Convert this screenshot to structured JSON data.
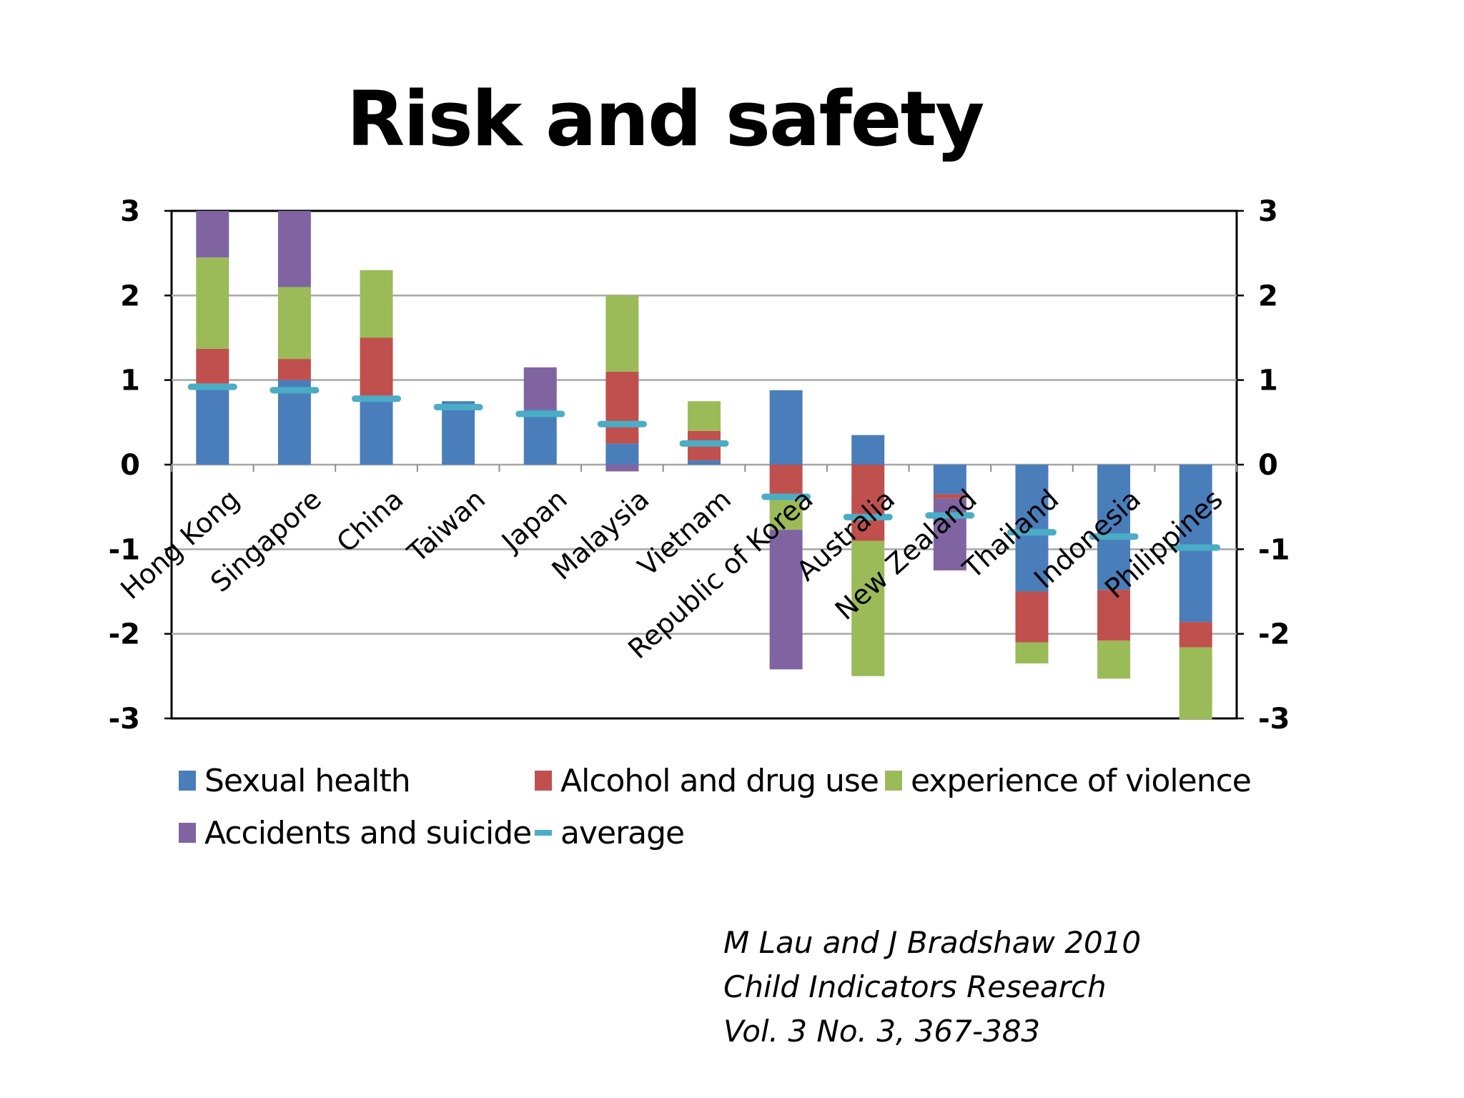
{
  "slide": {
    "title": "Risk and safety",
    "citation": [
      "M Lau and J Bradshaw 2010",
      "Child Indicators Research",
      "Vol. 3 No. 3, 367-383"
    ]
  },
  "chart_data": {
    "type": "bar",
    "stacked": true,
    "title": "",
    "xlabel": "",
    "ylabel": "",
    "ylim": [
      -3,
      3
    ],
    "yticks": [
      3,
      2,
      1,
      0,
      -1,
      -2,
      -3
    ],
    "secondary_y_axis": true,
    "grid": true,
    "legend_position": "bottom",
    "categories": [
      "Hong Kong",
      "Singapore",
      "China",
      "Taiwan",
      "Japan",
      "Malaysia",
      "Vietnam",
      "Republic of Korea",
      "Australia",
      "New Zealand",
      "Thailand",
      "Indonesia",
      "Philippines"
    ],
    "series": [
      {
        "name": "Sexual health",
        "color": "#4a7ebb",
        "values": [
          0.96,
          1.0,
          0.8,
          0.75,
          0.65,
          0.25,
          0.05,
          0.88,
          0.35,
          -0.35,
          -1.5,
          -1.48,
          -1.86
        ]
      },
      {
        "name": "Alcohol and drug use",
        "color": "#c0504d",
        "values": [
          0.41,
          0.25,
          0.7,
          0.0,
          0.0,
          0.85,
          0.35,
          -0.35,
          -0.9,
          -0.05,
          -0.6,
          -0.6,
          -0.3
        ]
      },
      {
        "name": "experience of violence",
        "color": "#9bbb59",
        "values": [
          1.08,
          0.85,
          0.8,
          0.0,
          0.0,
          0.9,
          0.35,
          -0.42,
          -1.6,
          0.0,
          -0.25,
          -0.45,
          -0.85
        ]
      },
      {
        "name": "Accidents and suicide",
        "color": "#8064a2",
        "values": [
          0.55,
          0.9,
          0.0,
          0.0,
          0.5,
          -0.08,
          0.0,
          -1.65,
          0.0,
          -0.85,
          0.0,
          0.0,
          0.0
        ]
      }
    ],
    "average": {
      "name": "average",
      "color": "#4bacc6",
      "values": [
        0.92,
        0.88,
        0.78,
        0.68,
        0.6,
        0.48,
        0.25,
        -0.38,
        -0.62,
        -0.6,
        -0.8,
        -0.85,
        -0.98
      ]
    },
    "legend": [
      "Sexual health",
      "Alcohol and drug use",
      "experience of violence",
      "Accidents and suicide",
      "average"
    ]
  }
}
